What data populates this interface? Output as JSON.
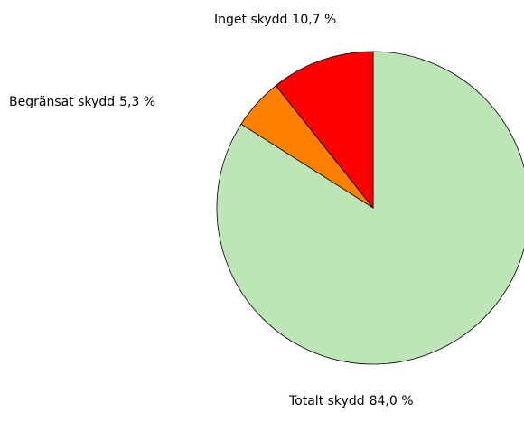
{
  "chart_data": {
    "type": "pie",
    "categories": [
      "Totalt skydd",
      "Begränsat skydd",
      "Inget skydd"
    ],
    "values": [
      84.0,
      5.3,
      10.7
    ],
    "value_labels": [
      "84,0 %",
      "5,3 %",
      "10,7 %"
    ],
    "colors": [
      "#bde5b8",
      "#ff8000",
      "#ff0000"
    ]
  }
}
